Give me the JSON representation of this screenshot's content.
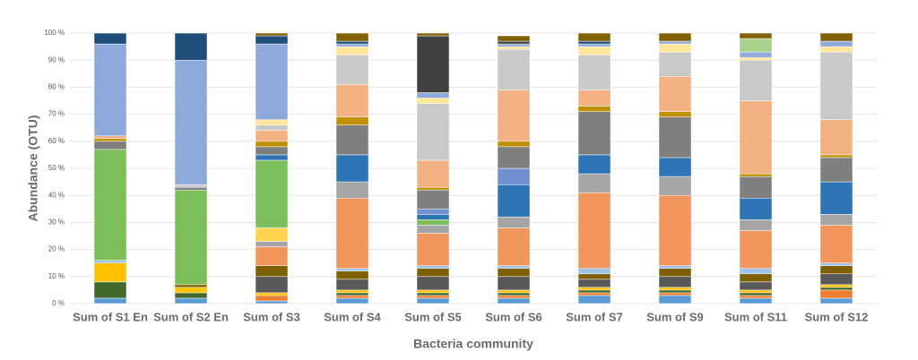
{
  "chart_data": {
    "type": "stacked_bar",
    "xlabel": "Bacteria community",
    "ylabel": "Abundance (OTU)",
    "categories": [
      "Sum of S1 En",
      "Sum of S2 En",
      "Sum of S3",
      "Sum of S4",
      "Sum of S5",
      "Sum of S6",
      "Sum of S7",
      "Sum of S9",
      "Sum of S11",
      "Sum of S12"
    ],
    "ylim": [
      0,
      100
    ],
    "yticks": [
      {
        "value": 0,
        "label": "0 %"
      },
      {
        "value": 10,
        "label": "10 %"
      },
      {
        "value": 20,
        "label": "20 %"
      },
      {
        "value": 30,
        "label": "30 %"
      },
      {
        "value": 40,
        "label": "40 %"
      },
      {
        "value": 50,
        "label": "50 %"
      },
      {
        "value": 60,
        "label": "60 %"
      },
      {
        "value": 70,
        "label": "70 %"
      },
      {
        "value": 80,
        "label": "80 %"
      },
      {
        "value": 90,
        "label": "90 %"
      },
      {
        "value": 100,
        "label": "100 %"
      }
    ],
    "grid": true,
    "series": [
      {
        "color": "#5b9bd5",
        "values": [
          2,
          2,
          1,
          2,
          2,
          2,
          3,
          3,
          2,
          2
        ]
      },
      {
        "color": "#ed7d31",
        "values": [
          0,
          0,
          2,
          1,
          1,
          1,
          1,
          1,
          1,
          3
        ]
      },
      {
        "color": "#43682b",
        "values": [
          6,
          2,
          0,
          1,
          1,
          1,
          1,
          1,
          1,
          1
        ]
      },
      {
        "color": "#ffc000",
        "values": [
          7,
          2,
          1,
          1,
          1,
          1,
          1,
          1,
          1,
          1
        ]
      },
      {
        "color": "#595959",
        "values": [
          0,
          0,
          6,
          4,
          5,
          5,
          3,
          4,
          3,
          4
        ]
      },
      {
        "color": "#7f6000",
        "values": [
          0,
          1,
          4,
          3,
          3,
          3,
          2,
          3,
          3,
          3
        ]
      },
      {
        "color": "#9dc3e6",
        "values": [
          1,
          0,
          0,
          1,
          1,
          1,
          2,
          1,
          2,
          1
        ]
      },
      {
        "color": "#f0955b",
        "values": [
          0,
          0,
          7,
          26,
          12,
          14,
          28,
          26,
          14,
          14
        ]
      },
      {
        "color": "#a5a5a5",
        "values": [
          0,
          0,
          2,
          6,
          3,
          4,
          7,
          7,
          4,
          4
        ]
      },
      {
        "color": "#ffd34d",
        "values": [
          0,
          0,
          5,
          0,
          0,
          0,
          0,
          0,
          0,
          0
        ]
      },
      {
        "color": "#7cbf5a",
        "values": [
          41,
          35,
          25,
          0,
          2,
          0,
          0,
          0,
          0,
          0
        ]
      },
      {
        "color": "#2e75b6",
        "values": [
          0,
          0,
          2,
          10,
          2,
          12,
          7,
          7,
          8,
          12
        ]
      },
      {
        "color": "#6f8fcf",
        "values": [
          0,
          0,
          0,
          0,
          2,
          6,
          0,
          0,
          0,
          0
        ]
      },
      {
        "color": "#7f7f7f",
        "values": [
          3,
          1,
          3,
          11,
          7,
          8,
          16,
          15,
          8,
          9
        ]
      },
      {
        "color": "#bf9000",
        "values": [
          1,
          0,
          2,
          3,
          1,
          2,
          2,
          2,
          1,
          1
        ]
      },
      {
        "color": "#f4b183",
        "values": [
          1,
          0,
          4,
          12,
          10,
          19,
          6,
          13,
          27,
          13
        ]
      },
      {
        "color": "#c9c9c9",
        "values": [
          0,
          1,
          2,
          11,
          21,
          15,
          13,
          9,
          15,
          25
        ]
      },
      {
        "color": "#ffe699",
        "values": [
          0,
          0,
          2,
          3,
          2,
          1,
          3,
          3,
          1,
          2
        ]
      },
      {
        "color": "#8eaadb",
        "values": [
          34,
          46,
          28,
          1,
          2,
          1,
          1,
          1,
          2,
          2
        ]
      },
      {
        "color": "#a9d18e",
        "values": [
          0,
          0,
          0,
          0,
          0,
          0,
          0,
          0,
          5,
          0
        ]
      },
      {
        "color": "#1f4e79",
        "values": [
          4,
          10,
          3,
          1,
          0,
          0,
          1,
          0,
          0,
          0
        ]
      },
      {
        "color": "#404040",
        "values": [
          0,
          0,
          0,
          0,
          21,
          1,
          0,
          0,
          0,
          0
        ]
      },
      {
        "color": "#806000",
        "values": [
          0,
          0,
          1,
          3,
          1,
          2,
          3,
          3,
          2,
          3
        ]
      }
    ]
  }
}
